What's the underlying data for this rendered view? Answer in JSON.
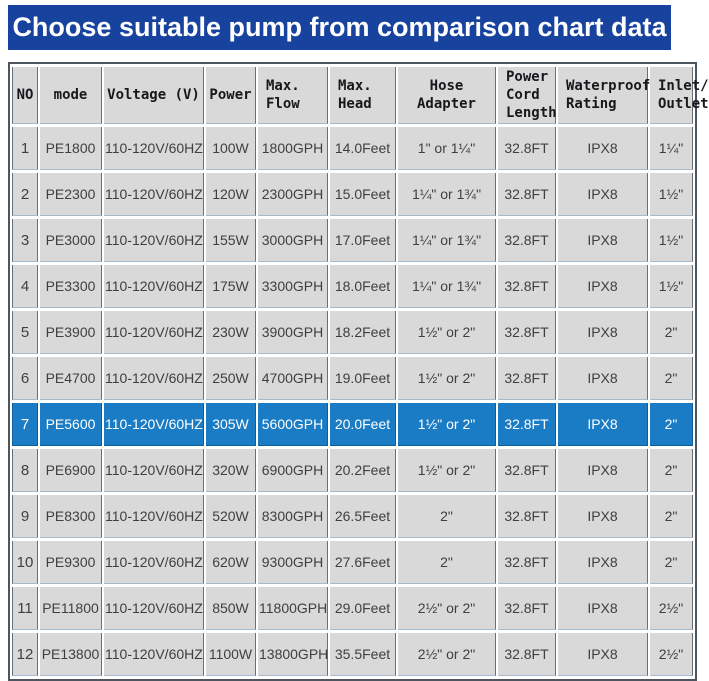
{
  "banner": {
    "title": "Choose suitable pump from comparison chart data"
  },
  "colors": {
    "banner_blue": "#17429e",
    "highlight_blue": "#1a7cc4",
    "cell_gray": "#d9d9d9",
    "vertical_border": "#667079",
    "horizontal_border": "#a6bacd",
    "outer_border": "#4d565e",
    "highlight_text": "#ffffff",
    "body_text": "#3f3f3f"
  },
  "chart_data": {
    "type": "table",
    "title": "Choose suitable pump from comparison chart data",
    "columns": [
      "NO",
      "mode",
      "Voltage (V)",
      "Power",
      "Max. Flow",
      "Max. Head",
      "Hose Adapter",
      "Power Cord Length",
      "Waterproof Rating",
      "Inlet/Outlet"
    ],
    "column_display": [
      "NO",
      "mode",
      "Voltage (V)",
      "Power",
      "Max.\nFlow",
      "Max.\nHead",
      "Hose Adapter",
      "Power\nCord\nLength",
      "Waterproof\nRating",
      "Inlet/\nOutlet"
    ],
    "rows": [
      [
        "1",
        "PE1800",
        "110-120V/60HZ",
        "100W",
        "1800GPH",
        "14.0Feet",
        "1\" or 1¼\"",
        "32.8FT",
        "IPX8",
        "1¼\""
      ],
      [
        "2",
        "PE2300",
        "110-120V/60HZ",
        "120W",
        "2300GPH",
        "15.0Feet",
        "1¼\" or 1¾\"",
        "32.8FT",
        "IPX8",
        "1½\""
      ],
      [
        "3",
        "PE3000",
        "110-120V/60HZ",
        "155W",
        "3000GPH",
        "17.0Feet",
        "1¼\" or 1¾\"",
        "32.8FT",
        "IPX8",
        "1½\""
      ],
      [
        "4",
        "PE3300",
        "110-120V/60HZ",
        "175W",
        "3300GPH",
        "18.0Feet",
        "1¼\" or 1¾\"",
        "32.8FT",
        "IPX8",
        "1½\""
      ],
      [
        "5",
        "PE3900",
        "110-120V/60HZ",
        "230W",
        "3900GPH",
        "18.2Feet",
        "1½\" or 2\"",
        "32.8FT",
        "IPX8",
        "2\""
      ],
      [
        "6",
        "PE4700",
        "110-120V/60HZ",
        "250W",
        "4700GPH",
        "19.0Feet",
        "1½\" or 2\"",
        "32.8FT",
        "IPX8",
        "2\""
      ],
      [
        "7",
        "PE5600",
        "110-120V/60HZ",
        "305W",
        "5600GPH",
        "20.0Feet",
        "1½\" or 2\"",
        "32.8FT",
        "IPX8",
        "2\""
      ],
      [
        "8",
        "PE6900",
        "110-120V/60HZ",
        "320W",
        "6900GPH",
        "20.2Feet",
        "1½\" or 2\"",
        "32.8FT",
        "IPX8",
        "2\""
      ],
      [
        "9",
        "PE8300",
        "110-120V/60HZ",
        "520W",
        "8300GPH",
        "26.5Feet",
        "2\"",
        "32.8FT",
        "IPX8",
        "2\""
      ],
      [
        "10",
        "PE9300",
        "110-120V/60HZ",
        "620W",
        "9300GPH",
        "27.6Feet",
        "2\"",
        "32.8FT",
        "IPX8",
        "2\""
      ],
      [
        "11",
        "PE11800",
        "110-120V/60HZ",
        "850W",
        "11800GPH",
        "29.0Feet",
        "2½\" or 2\"",
        "32.8FT",
        "IPX8",
        "2½\""
      ],
      [
        "12",
        "PE13800",
        "110-120V/60HZ",
        "1100W",
        "13800GPH",
        "35.5Feet",
        "2½\" or 2\"",
        "32.8FT",
        "IPX8",
        "2½\""
      ]
    ],
    "highlighted_row_index": 6,
    "highlighted_row_mode": "PE5600"
  }
}
